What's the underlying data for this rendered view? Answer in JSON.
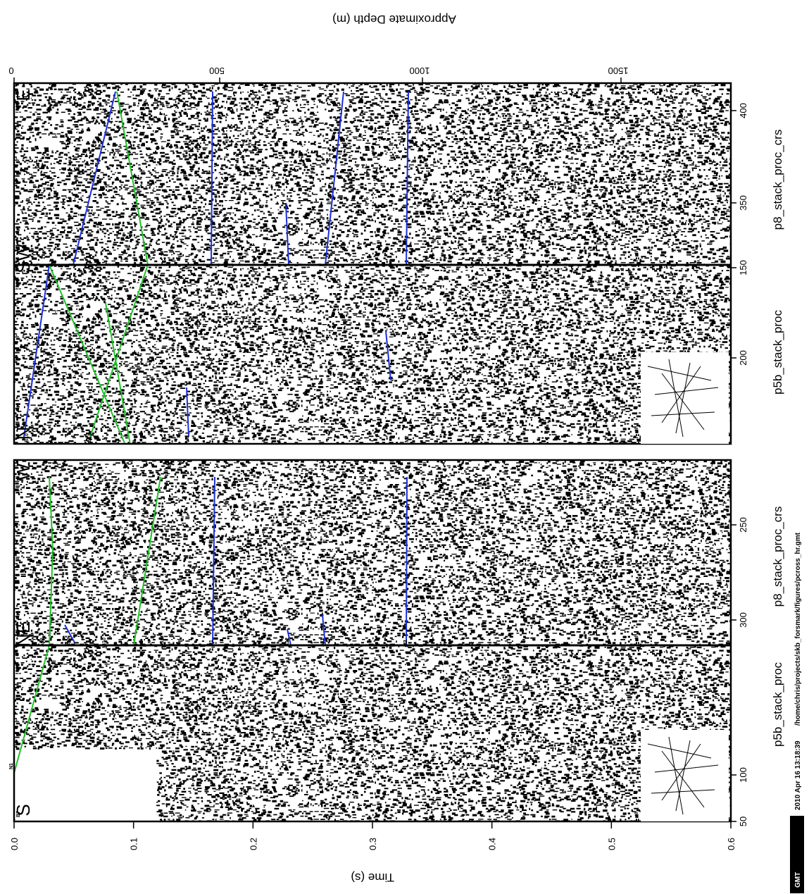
{
  "axes": {
    "time_label": "Time (s)",
    "depth_label": "Approximate Depth (m)",
    "time_ticks": [
      "0.0",
      "0.1",
      "0.2",
      "0.3",
      "0.4",
      "0.5",
      "0.6"
    ],
    "depth_ticks": [
      "0",
      "500",
      "1000",
      "1500"
    ],
    "time_range": [
      0.0,
      0.6
    ]
  },
  "panels": [
    {
      "id": "panel-1",
      "profiles": [
        {
          "name": "p5b_stack_proc",
          "ticks": [
            "50",
            "100"
          ],
          "left_dir": "S",
          "right_dir": "NE"
        },
        {
          "name": "p8_stack_proc_crs",
          "ticks": [
            "300",
            "250"
          ],
          "left_dir": "NE",
          "right_dir": "W"
        }
      ]
    },
    {
      "id": "panel-2",
      "profiles": [
        {
          "name": "p5b_stack_proc",
          "ticks": [
            "200",
            "150"
          ],
          "left_dir": "N",
          "right_dir": "SW"
        },
        {
          "name": "p8_stack_proc_crs",
          "ticks": [
            "350",
            "400"
          ],
          "left_dir": "SW",
          "right_dir": "E"
        }
      ]
    }
  ],
  "horizon_labels": [
    "B7",
    "N1",
    "B10",
    "A13",
    "M1",
    "A12",
    "A11",
    "M2",
    "B10",
    "A13",
    "M1",
    "A12",
    "A11",
    "M2",
    "B10",
    "A13",
    "M1",
    "M2"
  ],
  "colors": {
    "blue_horizon": "#1f2fd6",
    "green_horizon": "#22c02a",
    "wiggle": "#000000",
    "background": "#ffffff"
  },
  "footer": {
    "logo": "GMT",
    "timestamp": "2010 Apr 16 13:18:39",
    "path": "/home/chris/projects/skb_forsmark/figures/pcross_hr.gmt"
  }
}
